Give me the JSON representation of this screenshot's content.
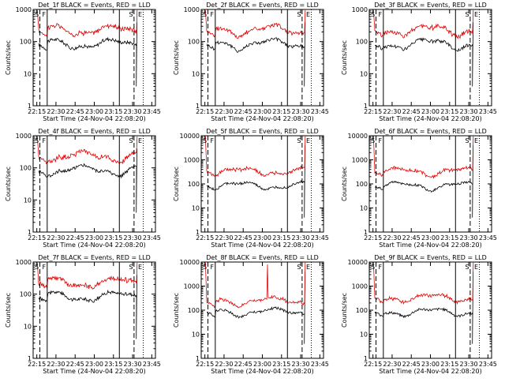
{
  "chart_data": [
    {
      "type": "line",
      "title": "Det_1f BLACK = Events, RED = LLD",
      "xlabel": "Start Time (24-Nov-04 22:08:20)",
      "ylabel": "Counts/sec",
      "x_ticks": [
        "22:15",
        "22:30",
        "22:45",
        "23:00",
        "23:15",
        "23:30",
        "23:45"
      ],
      "y_ticks": [
        "1",
        "10",
        "100",
        "1000"
      ],
      "ylim": [
        1,
        1000
      ],
      "yscale": "log",
      "markers": [
        {
          "label": "S",
          "style": "dashed"
        },
        {
          "label": "F",
          "style": "solid"
        },
        {
          "label": "",
          "style": "solid"
        },
        {
          "label": "S",
          "style": "dashed"
        },
        {
          "label": "E",
          "style": "dotted"
        }
      ],
      "series": [
        {
          "name": "BLACK = Events",
          "color": "#000000",
          "profile": "low"
        },
        {
          "name": "RED = LLD",
          "color": "#e00000",
          "profile": "low"
        }
      ]
    },
    {
      "type": "line",
      "title": "Det_2f BLACK = Events, RED = LLD",
      "xlabel": "Start Time (24-Nov-04 22:08:20)",
      "ylabel": "Counts/sec",
      "x_ticks": [
        "22:15",
        "22:30",
        "22:45",
        "23:00",
        "23:15",
        "23:30",
        "23:45"
      ],
      "y_ticks": [
        "1",
        "10",
        "100",
        "1000"
      ],
      "ylim": [
        1,
        1000
      ],
      "yscale": "log",
      "markers": [
        {
          "label": "S",
          "style": "dashed"
        },
        {
          "label": "F",
          "style": "solid"
        },
        {
          "label": "",
          "style": "solid"
        },
        {
          "label": "S",
          "style": "dashed"
        },
        {
          "label": "E",
          "style": "dotted"
        }
      ],
      "series": [
        {
          "name": "BLACK = Events",
          "color": "#000000",
          "profile": "low"
        },
        {
          "name": "RED = LLD",
          "color": "#e00000",
          "profile": "low"
        }
      ]
    },
    {
      "type": "line",
      "title": "Det_3f BLACK = Events, RED = LLD",
      "xlabel": "Start Time (24-Nov-04 22:08:20)",
      "ylabel": "Counts/sec",
      "x_ticks": [
        "22:15",
        "22:30",
        "22:45",
        "23:00",
        "23:15",
        "23:30",
        "23:45"
      ],
      "y_ticks": [
        "1",
        "10",
        "100",
        "1000"
      ],
      "ylim": [
        1,
        1000
      ],
      "yscale": "log",
      "markers": [
        {
          "label": "S",
          "style": "dashed"
        },
        {
          "label": "F",
          "style": "solid"
        },
        {
          "label": "",
          "style": "solid"
        },
        {
          "label": "S",
          "style": "dashed"
        },
        {
          "label": "E",
          "style": "dotted"
        }
      ],
      "series": [
        {
          "name": "BLACK = Events",
          "color": "#000000",
          "profile": "low"
        },
        {
          "name": "RED = LLD",
          "color": "#e00000",
          "profile": "low"
        }
      ]
    },
    {
      "type": "line",
      "title": "Det_4f BLACK = Events, RED = LLD",
      "xlabel": "Start Time (24-Nov-04 22:08:20)",
      "ylabel": "Counts/sec",
      "x_ticks": [
        "22:15",
        "22:30",
        "22:45",
        "23:00",
        "23:15",
        "23:30",
        "23:45"
      ],
      "y_ticks": [
        "1",
        "10",
        "100",
        "1000"
      ],
      "ylim": [
        1,
        1000
      ],
      "yscale": "log",
      "markers": [
        {
          "label": "S",
          "style": "dashed"
        },
        {
          "label": "F",
          "style": "solid"
        },
        {
          "label": "",
          "style": "solid"
        },
        {
          "label": "S",
          "style": "dashed"
        },
        {
          "label": "E",
          "style": "dotted"
        }
      ],
      "series": [
        {
          "name": "BLACK = Events",
          "color": "#000000",
          "profile": "low"
        },
        {
          "name": "RED = LLD",
          "color": "#e00000",
          "profile": "low"
        }
      ]
    },
    {
      "type": "line",
      "title": "Det_5f BLACK = Events, RED = LLD",
      "xlabel": "Start Time (24-Nov-04 22:08:20)",
      "ylabel": "Counts/sec",
      "x_ticks": [
        "22:15",
        "22:30",
        "22:45",
        "23:00",
        "23:15",
        "23:30",
        "23:45"
      ],
      "y_ticks": [
        "1",
        "10",
        "100",
        "1000",
        "10000"
      ],
      "ylim": [
        1,
        10000
      ],
      "yscale": "log",
      "markers": [
        {
          "label": "S",
          "style": "dashed"
        },
        {
          "label": "F",
          "style": "solid"
        },
        {
          "label": "",
          "style": "solid"
        },
        {
          "label": "S",
          "style": "dashed"
        },
        {
          "label": "E",
          "style": "dotted"
        }
      ],
      "series": [
        {
          "name": "BLACK = Events",
          "color": "#000000",
          "profile": "low"
        },
        {
          "name": "RED = LLD",
          "color": "#e00000",
          "profile": "high"
        }
      ]
    },
    {
      "type": "line",
      "title": "Det_6f BLACK = Events, RED = LLD",
      "xlabel": "Start Time (24-Nov-04 22:08:20)",
      "ylabel": "Counts/sec",
      "x_ticks": [
        "22:15",
        "22:30",
        "22:45",
        "23:00",
        "23:15",
        "23:30",
        "23:45"
      ],
      "y_ticks": [
        "1",
        "10",
        "100",
        "1000",
        "10000"
      ],
      "ylim": [
        1,
        10000
      ],
      "yscale": "log",
      "markers": [
        {
          "label": "S",
          "style": "dashed"
        },
        {
          "label": "F",
          "style": "solid"
        },
        {
          "label": "",
          "style": "solid"
        },
        {
          "label": "S",
          "style": "dashed"
        },
        {
          "label": "E",
          "style": "dotted"
        }
      ],
      "series": [
        {
          "name": "BLACK = Events",
          "color": "#000000",
          "profile": "low"
        },
        {
          "name": "RED = LLD",
          "color": "#e00000",
          "profile": "high"
        }
      ]
    },
    {
      "type": "line",
      "title": "Det_7f BLACK = Events, RED = LLD",
      "xlabel": "Start Time (24-Nov-04 22:08:20)",
      "ylabel": "Counts/sec",
      "x_ticks": [
        "22:15",
        "22:30",
        "22:45",
        "23:00",
        "23:15",
        "23:30",
        "23:45"
      ],
      "y_ticks": [
        "1",
        "10",
        "100",
        "1000"
      ],
      "ylim": [
        1,
        1000
      ],
      "yscale": "log",
      "markers": [
        {
          "label": "S",
          "style": "dashed"
        },
        {
          "label": "F",
          "style": "solid"
        },
        {
          "label": "",
          "style": "solid"
        },
        {
          "label": "S",
          "style": "dashed"
        },
        {
          "label": "E",
          "style": "dotted"
        }
      ],
      "series": [
        {
          "name": "BLACK = Events",
          "color": "#000000",
          "profile": "low"
        },
        {
          "name": "RED = LLD",
          "color": "#e00000",
          "profile": "low"
        }
      ]
    },
    {
      "type": "line",
      "title": "Det_8f BLACK = Events, RED = LLD",
      "xlabel": "Start Time (24-Nov-04 22:08:20)",
      "ylabel": "Counts/sec",
      "x_ticks": [
        "22:15",
        "22:30",
        "22:45",
        "23:00",
        "23:15",
        "23:30",
        "23:45"
      ],
      "y_ticks": [
        "1",
        "10",
        "100",
        "1000",
        "10000"
      ],
      "ylim": [
        1,
        10000
      ],
      "yscale": "log",
      "markers": [
        {
          "label": "S",
          "style": "dashed"
        },
        {
          "label": "F",
          "style": "solid"
        },
        {
          "label": "",
          "style": "solid"
        },
        {
          "label": "S",
          "style": "dashed"
        },
        {
          "label": "E",
          "style": "dotted"
        }
      ],
      "series": [
        {
          "name": "BLACK = Events",
          "color": "#000000",
          "profile": "low"
        },
        {
          "name": "RED = LLD",
          "color": "#e00000",
          "profile": "spiky"
        }
      ]
    },
    {
      "type": "line",
      "title": "Det_9f BLACK = Events, RED = LLD",
      "xlabel": "Start Time (24-Nov-04 22:08:20)",
      "ylabel": "Counts/sec",
      "x_ticks": [
        "22:15",
        "22:30",
        "22:45",
        "23:00",
        "23:15",
        "23:30",
        "23:45"
      ],
      "y_ticks": [
        "1",
        "10",
        "100",
        "1000",
        "10000"
      ],
      "ylim": [
        1,
        10000
      ],
      "yscale": "log",
      "markers": [
        {
          "label": "S",
          "style": "dashed"
        },
        {
          "label": "F",
          "style": "solid"
        },
        {
          "label": "",
          "style": "solid"
        },
        {
          "label": "S",
          "style": "dashed"
        },
        {
          "label": "E",
          "style": "dotted"
        }
      ],
      "series": [
        {
          "name": "BLACK = Events",
          "color": "#000000",
          "profile": "low"
        },
        {
          "name": "RED = LLD",
          "color": "#e00000",
          "profile": "high"
        }
      ]
    }
  ]
}
